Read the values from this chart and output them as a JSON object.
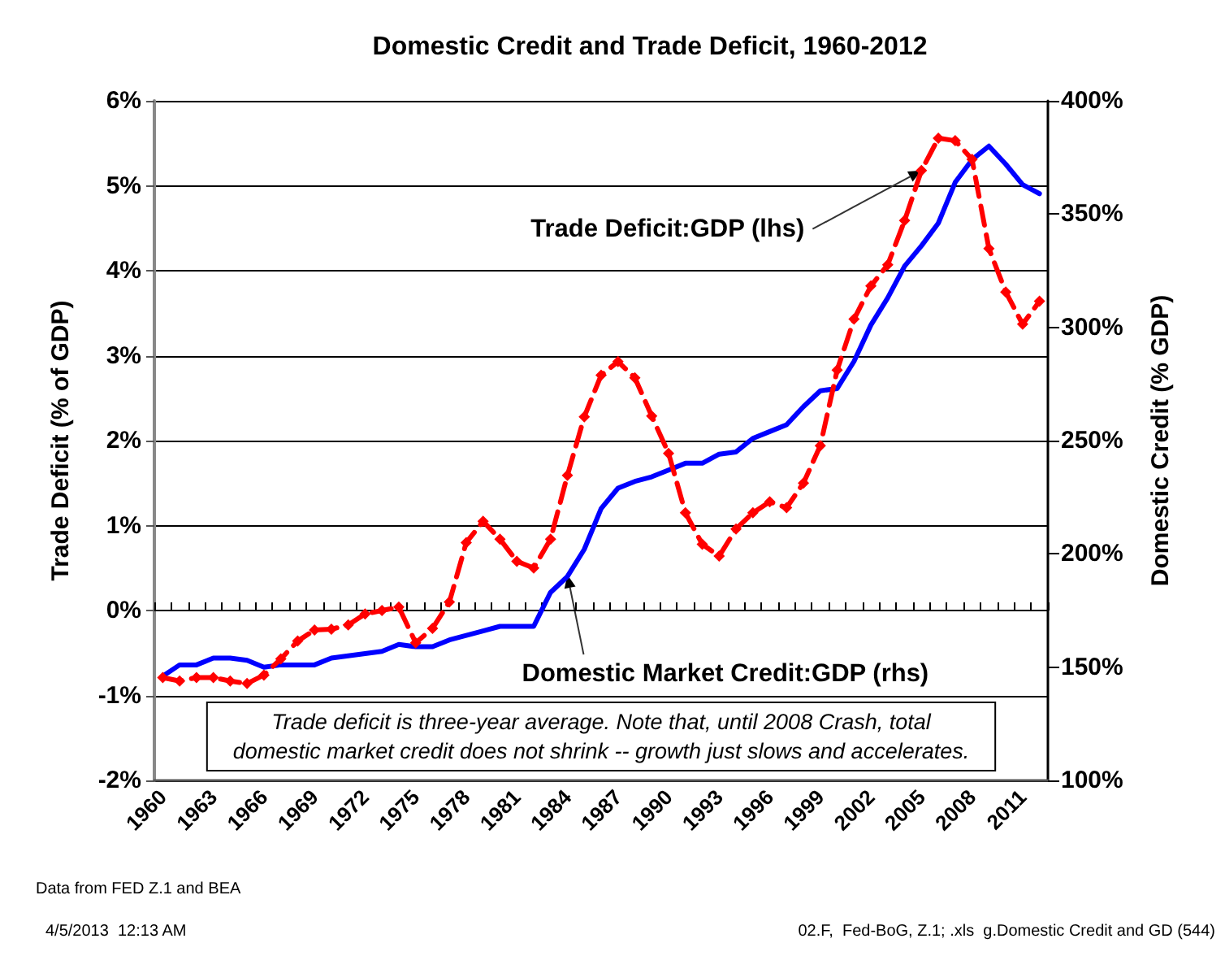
{
  "chart_data": {
    "type": "line",
    "title": "Domestic Credit and Trade Deficit, 1960-2012",
    "ylabel": "Trade Deficit (% of GDP)",
    "y2label": "Domestic Credit (% GDP)",
    "categories": [
      "1960",
      null,
      null,
      "1963",
      null,
      null,
      "1966",
      null,
      null,
      "1969",
      null,
      null,
      "1972",
      null,
      null,
      "1975",
      null,
      null,
      "1978",
      null,
      null,
      "1981",
      null,
      null,
      "1984",
      null,
      null,
      "1987",
      null,
      null,
      "1990",
      null,
      null,
      "1993",
      null,
      null,
      "1996",
      null,
      null,
      "1999",
      null,
      null,
      "2002",
      null,
      null,
      "2005",
      null,
      null,
      "2008",
      null,
      null,
      "2011",
      null
    ],
    "series": [
      {
        "color": "#ff0000",
        "marker": "diamond",
        "line_style": "dashed",
        "values": [
          -0.79,
          -0.83,
          -0.79,
          -0.79,
          -0.83,
          -0.86,
          -0.76,
          -0.57,
          -0.36,
          -0.23,
          -0.22,
          -0.17,
          -0.04,
          0.0,
          0.04,
          -0.38,
          -0.21,
          0.1,
          0.8,
          1.05,
          0.84,
          0.58,
          0.5,
          0.84,
          1.59,
          2.28,
          2.77,
          2.93,
          2.74,
          2.29,
          1.85,
          1.15,
          0.78,
          0.64,
          0.96,
          1.15,
          1.28,
          1.21,
          1.5,
          1.94,
          2.83,
          3.43,
          3.82,
          4.07,
          4.59,
          5.18,
          5.56,
          5.53,
          5.31,
          4.26,
          3.75,
          3.37,
          3.64
        ]
      },
      {
        "color": "#0000ff",
        "marker": "none",
        "line_style": "solid",
        "axis": "y2",
        "values": [
          146,
          151,
          151,
          154,
          154,
          153,
          150,
          151,
          151,
          151,
          154,
          155,
          156,
          157,
          160,
          159,
          159,
          162,
          164,
          166,
          168,
          168,
          168,
          183,
          190,
          202,
          220,
          229,
          232,
          234,
          237,
          240,
          240,
          244,
          245,
          251,
          254,
          257,
          265,
          272,
          273,
          285,
          301,
          313,
          327,
          336,
          346,
          364,
          374,
          380,
          372,
          363,
          359
        ]
      }
    ],
    "ylim": [
      -2,
      6
    ],
    "yticks": [
      {
        "value": -2,
        "label": "-2%"
      },
      {
        "value": -1,
        "label": "-1%"
      },
      {
        "value": 0,
        "label": "0%"
      },
      {
        "value": 1,
        "label": "1%"
      },
      {
        "value": 2,
        "label": "2%"
      },
      {
        "value": 3,
        "label": "3%"
      },
      {
        "value": 4,
        "label": "4%"
      },
      {
        "value": 5,
        "label": "5%"
      },
      {
        "value": 6,
        "label": "6%"
      }
    ],
    "y2lim": [
      100,
      400
    ],
    "y2ticks": [
      {
        "value": 100,
        "label": "100%"
      },
      {
        "value": 150,
        "label": "150%"
      },
      {
        "value": 200,
        "label": "200%"
      },
      {
        "value": 250,
        "label": "250%"
      },
      {
        "value": 300,
        "label": "300%"
      },
      {
        "value": 350,
        "label": "350%"
      },
      {
        "value": 400,
        "label": "400%"
      }
    ],
    "grid": "y",
    "annotations": [
      {
        "text": "Trade Deficit:GDP (lhs)",
        "x": "2005",
        "y": 5.18
      },
      {
        "text": "Domestic Market Credit:GDP (rhs)",
        "x": "1984",
        "y": 0.42
      },
      "Trade deficit is three-year average. Note that, until 2008 Crash, total\ndomestic market credit does not shrink -- growth just slows and accelerates.",
      "Data from FED Z.1 and BEA",
      "4/5/2013  12:13 AM",
      "02.F,  Fed-BoG, Z.1; .xls  g.Domestic Credit and GD (544)"
    ]
  }
}
